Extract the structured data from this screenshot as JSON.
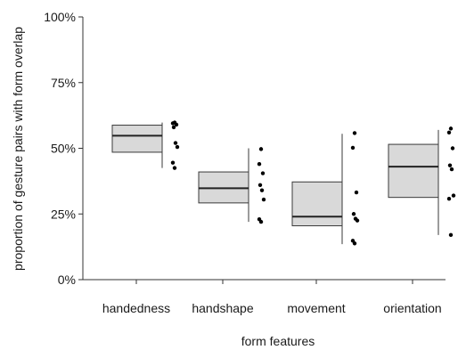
{
  "chart_data": {
    "type": "box",
    "title": "",
    "xlabel": "form features",
    "ylabel": "proportion of gesture pairs with form overlap",
    "ylim": [
      0,
      1
    ],
    "y_ticks": [
      {
        "value": 0,
        "label": "0%"
      },
      {
        "value": 0.25,
        "label": "25%"
      },
      {
        "value": 0.5,
        "label": "50%"
      },
      {
        "value": 0.75,
        "label": "75%"
      },
      {
        "value": 1,
        "label": "100%"
      }
    ],
    "grid": false,
    "legend": "none",
    "box_fill": "#d9d9d9",
    "box_stroke": "#3a3a3a",
    "point_color": "#000000",
    "categories": [
      "handedness",
      "handshape",
      "movement",
      "orientation"
    ],
    "boxes": [
      {
        "category": "handedness",
        "whisker_low": 0.425,
        "q1": 0.485,
        "median": 0.548,
        "q3": 0.588,
        "whisker_high": 0.598
      },
      {
        "category": "handshape",
        "whisker_low": 0.22,
        "q1": 0.292,
        "median": 0.348,
        "q3": 0.41,
        "whisker_high": 0.5
      },
      {
        "category": "movement",
        "whisker_low": 0.135,
        "q1": 0.205,
        "median": 0.24,
        "q3": 0.372,
        "whisker_high": 0.555
      },
      {
        "category": "orientation",
        "whisker_low": 0.17,
        "q1": 0.313,
        "median": 0.43,
        "q3": 0.515,
        "whisker_high": 0.57
      }
    ],
    "points": [
      {
        "category": "handedness",
        "values": [
          0.598,
          0.595,
          0.59,
          0.58,
          0.52,
          0.505,
          0.445,
          0.425
        ]
      },
      {
        "category": "handshape",
        "values": [
          0.497,
          0.44,
          0.405,
          0.36,
          0.34,
          0.305,
          0.23,
          0.22
        ]
      },
      {
        "category": "movement",
        "values": [
          0.558,
          0.502,
          0.332,
          0.25,
          0.232,
          0.225,
          0.148,
          0.138
        ]
      },
      {
        "category": "orientation",
        "values": [
          0.575,
          0.56,
          0.5,
          0.435,
          0.42,
          0.32,
          0.308,
          0.17
        ]
      }
    ]
  }
}
